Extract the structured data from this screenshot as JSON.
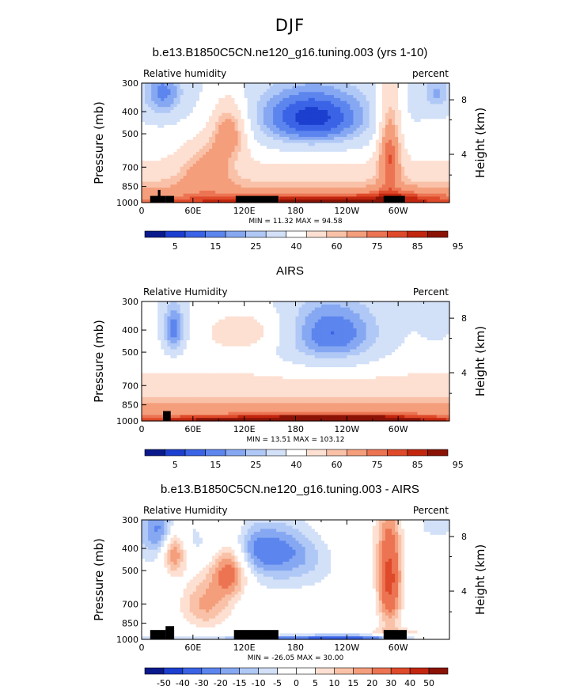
{
  "figure": {
    "super_title": "DJF"
  },
  "chart_data": [
    {
      "type": "heatmap",
      "title": "b.e13.B1850C5CN.ne120_g16.tuning.003 (yrs 1-10)",
      "left_label": "Relative humidity",
      "right_label": "percent",
      "ylabel": "Pressure (mb)",
      "y2label": "Height (km)",
      "x_ticks": [
        "0",
        "60E",
        "120E",
        "180",
        "120W",
        "60W"
      ],
      "y_ticks": [
        "300",
        "400",
        "500",
        "700",
        "850",
        "1000"
      ],
      "y2_ticks": [
        "8",
        "4"
      ],
      "min_max": "MIN =  11.32  MAX =  94.58",
      "colorbar_labels": [
        "5",
        "15",
        "25",
        "40",
        "60",
        "75",
        "85",
        "95"
      ],
      "min": 11.32,
      "max": 94.58
    },
    {
      "type": "heatmap",
      "title": "AIRS",
      "left_label": "Relative Humidity",
      "right_label": "Percent",
      "ylabel": "Pressure (mb)",
      "y2label": "Height (km)",
      "x_ticks": [
        "0",
        "60E",
        "120E",
        "180",
        "120W",
        "60W"
      ],
      "y_ticks": [
        "300",
        "400",
        "500",
        "700",
        "850",
        "1000"
      ],
      "y2_ticks": [
        "8",
        "4"
      ],
      "min_max": "MIN =  13.51  MAX = 103.12",
      "colorbar_labels": [
        "5",
        "15",
        "25",
        "40",
        "60",
        "75",
        "85",
        "95"
      ],
      "min": 13.51,
      "max": 103.12
    },
    {
      "type": "heatmap",
      "title": "b.e13.B1850C5CN.ne120_g16.tuning.003 - AIRS",
      "left_label": "Relative Humidity",
      "right_label": "Percent",
      "ylabel": "Pressure (mb)",
      "y2label": "Height (km)",
      "x_ticks": [
        "0",
        "60E",
        "120E",
        "180",
        "120W",
        "60W"
      ],
      "y_ticks": [
        "300",
        "400",
        "500",
        "700",
        "850",
        "1000"
      ],
      "y2_ticks": [
        "8",
        "4"
      ],
      "min_max": "MIN = -26.05  MAX =  30.00",
      "colorbar_labels": [
        "-50",
        "-40",
        "-30",
        "-20",
        "-15",
        "-10",
        "-5",
        "0",
        "5",
        "10",
        "15",
        "20",
        "30",
        "40",
        "50"
      ],
      "min": -26.05,
      "max": 30.0
    }
  ],
  "colors": {
    "seq_palette": [
      "#0a1a8c",
      "#1c3fcf",
      "#3a63e6",
      "#5c85ee",
      "#86a8f2",
      "#b0c8f6",
      "#d2e0f8",
      "#ffffff",
      "#fde0d2",
      "#f9c2a8",
      "#f49e7c",
      "#ec7452",
      "#de4a2a",
      "#c2260f",
      "#8a1306"
    ],
    "div_palette": [
      "#0a1a8c",
      "#1c3fcf",
      "#3a63e6",
      "#5c85ee",
      "#86a8f2",
      "#b0c8f6",
      "#d2e0f8",
      "#ffffff",
      "#ffffff",
      "#fde0d2",
      "#f9c2a8",
      "#f49e7c",
      "#ec7452",
      "#de4a2a",
      "#c2260f",
      "#8a1306"
    ]
  }
}
